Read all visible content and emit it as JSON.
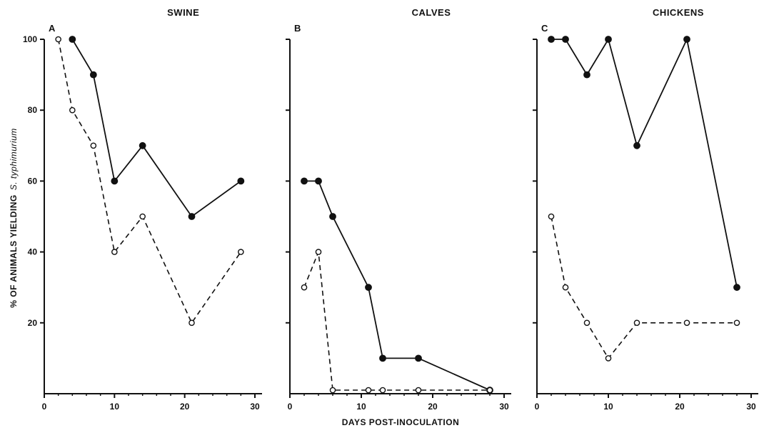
{
  "chart_data": [
    {
      "type": "line",
      "panel": "A",
      "title": "SWINE",
      "xlim": [
        0,
        30
      ],
      "ylim": [
        0,
        100
      ],
      "xticks": [
        0,
        10,
        20,
        30
      ],
      "yticks": [
        20,
        40,
        60,
        80,
        100
      ],
      "series": [
        {
          "style": "solid-filled",
          "x": [
            4,
            7,
            10,
            14,
            21,
            28
          ],
          "y": [
            100,
            90,
            60,
            70,
            50,
            60
          ]
        },
        {
          "style": "dashed-open",
          "x": [
            2,
            4,
            7,
            10,
            14,
            21,
            28
          ],
          "y": [
            100,
            80,
            70,
            40,
            50,
            20,
            40
          ]
        }
      ]
    },
    {
      "type": "line",
      "panel": "B",
      "title": "CALVES",
      "xlim": [
        0,
        30
      ],
      "ylim": [
        0,
        100
      ],
      "xticks": [
        0,
        10,
        20,
        30
      ],
      "series": [
        {
          "style": "solid-filled",
          "x": [
            2,
            4,
            6,
            11,
            13,
            18,
            28
          ],
          "y": [
            60,
            60,
            50,
            30,
            10,
            10,
            1
          ]
        },
        {
          "style": "dashed-open",
          "x": [
            2,
            4,
            6,
            11,
            13,
            18,
            28
          ],
          "y": [
            30,
            40,
            1,
            1,
            1,
            1,
            1
          ]
        }
      ]
    },
    {
      "type": "line",
      "panel": "C",
      "title": "CHICKENS",
      "xlim": [
        0,
        30
      ],
      "ylim": [
        0,
        100
      ],
      "xticks": [
        0,
        10,
        20,
        30
      ],
      "series": [
        {
          "style": "solid-filled",
          "x": [
            2,
            4,
            7,
            10,
            14,
            21,
            28
          ],
          "y": [
            100,
            100,
            90,
            100,
            70,
            100,
            30
          ]
        },
        {
          "style": "dashed-open",
          "x": [
            2,
            4,
            7,
            10,
            14,
            21,
            28
          ],
          "y": [
            50,
            30,
            20,
            10,
            20,
            20,
            20
          ]
        }
      ]
    }
  ],
  "ylabel": "% OF ANIMALS YIELDING",
  "ylabel_italic": "S. typhimurium",
  "xlabel": "DAYS POST-INOCULATION"
}
